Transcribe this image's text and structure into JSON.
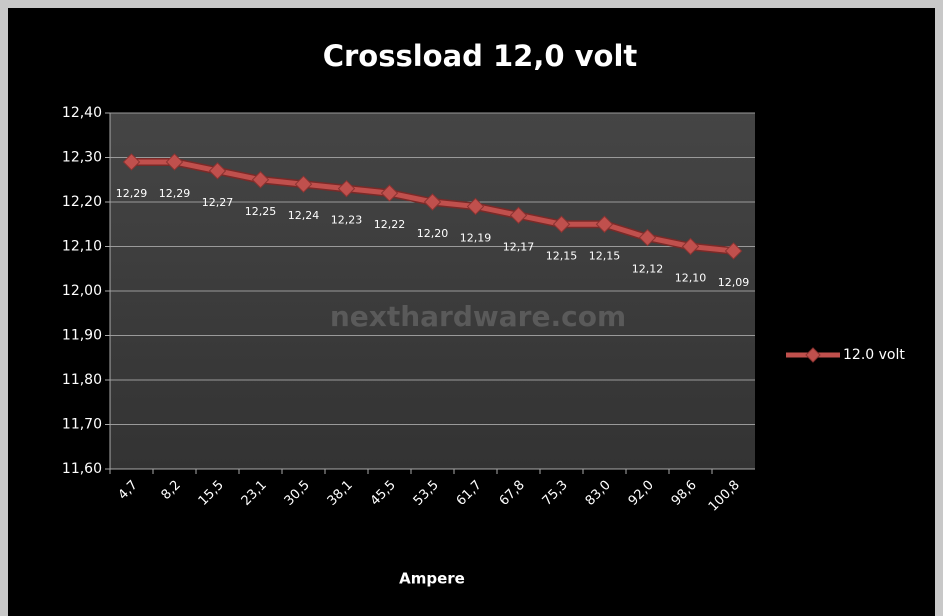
{
  "chart_data": {
    "type": "line",
    "title": "Crossload 12,0 volt",
    "x_label": "Ampere",
    "annotation": "nexthardware.com",
    "categories": [
      "4,7",
      "8,2",
      "15,5",
      "23,1",
      "30,5",
      "38,1",
      "45,5",
      "53,5",
      "61,7",
      "67,8",
      "75,3",
      "83,0",
      "92,0",
      "98,6",
      "100,8"
    ],
    "series": [
      {
        "name": "12.0 volt",
        "color": "#c0504d",
        "values": [
          12.29,
          12.29,
          12.27,
          12.25,
          12.24,
          12.23,
          12.22,
          12.2,
          12.19,
          12.17,
          12.15,
          12.15,
          12.12,
          12.1,
          12.09
        ],
        "value_labels": [
          "12,29",
          "12,29",
          "12,27",
          "12,25",
          "12,24",
          "12,23",
          "12,22",
          "12,20",
          "12,19",
          "12,17",
          "12,15",
          "12,15",
          "12,12",
          "12,10",
          "12,09"
        ]
      }
    ],
    "ylim": [
      11.6,
      12.4
    ],
    "yticks": [
      {
        "value": 11.6,
        "label": "11,60"
      },
      {
        "value": 11.7,
        "label": "11,70"
      },
      {
        "value": 11.8,
        "label": "11,80"
      },
      {
        "value": 11.9,
        "label": "11,90"
      },
      {
        "value": 12.0,
        "label": "12,00"
      },
      {
        "value": 12.1,
        "label": "12,10"
      },
      {
        "value": 12.2,
        "label": "12,20"
      },
      {
        "value": 12.3,
        "label": "12,30"
      },
      {
        "value": 12.4,
        "label": "12,40"
      }
    ],
    "grid": true,
    "legend": "right"
  }
}
